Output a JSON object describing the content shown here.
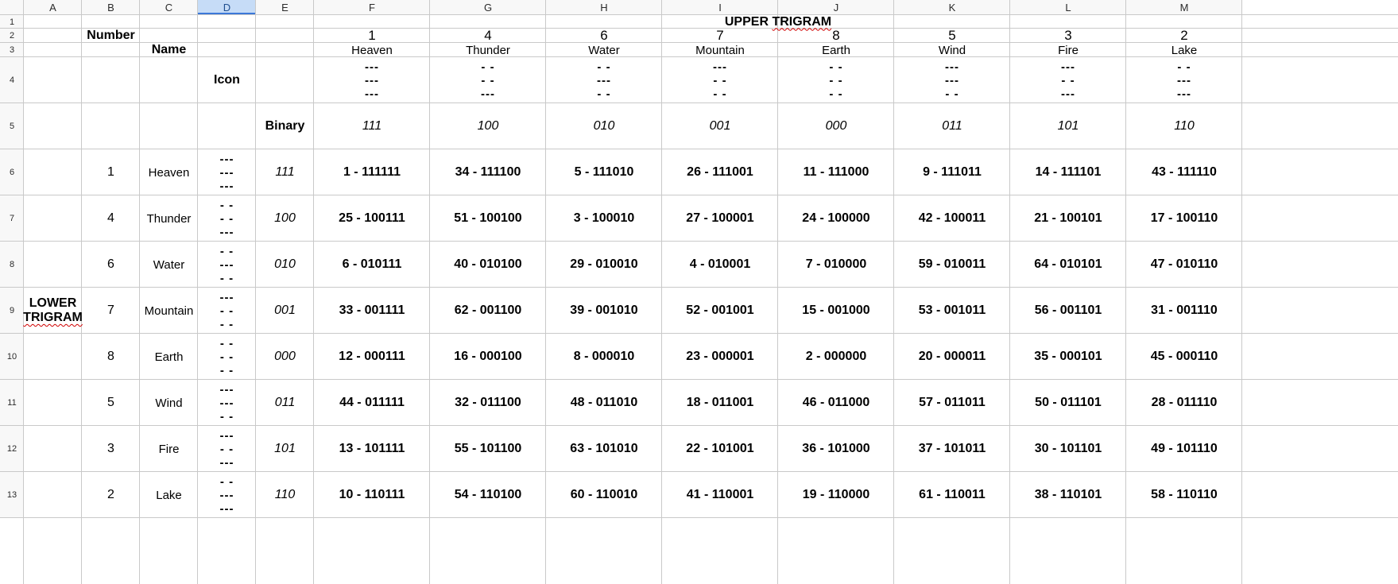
{
  "columns": [
    "A",
    "B",
    "C",
    "D",
    "E",
    "F",
    "G",
    "H",
    "I",
    "J",
    "K",
    "L",
    "M"
  ],
  "selected_column": "D",
  "rows": [
    "1",
    "2",
    "3",
    "4",
    "5",
    "6",
    "7",
    "8",
    "9",
    "10",
    "11",
    "12",
    "13"
  ],
  "title": "UPPER TRIGRAM",
  "side_label": [
    "LOWER",
    "TRIGRAM"
  ],
  "labels": {
    "number": "Number",
    "name": "Name",
    "icon": "Icon",
    "binary": "Binary"
  },
  "upper": {
    "numbers": [
      "1",
      "4",
      "6",
      "7",
      "8",
      "5",
      "3",
      "2"
    ],
    "names": [
      "Heaven",
      "Thunder",
      "Water",
      "Mountain",
      "Earth",
      "Wind",
      "Fire",
      "Lake"
    ],
    "icons": [
      [
        "---",
        "---",
        "---"
      ],
      [
        "- -",
        "- -",
        "---"
      ],
      [
        "- -",
        "---",
        "- -"
      ],
      [
        "---",
        "- -",
        "- -"
      ],
      [
        "- -",
        "- -",
        "- -"
      ],
      [
        "---",
        "---",
        "- -"
      ],
      [
        "---",
        "- -",
        "---"
      ],
      [
        "- -",
        "---",
        "---"
      ]
    ],
    "binary": [
      "111",
      "100",
      "010",
      "001",
      "000",
      "011",
      "101",
      "110"
    ]
  },
  "lower": [
    {
      "number": "1",
      "name": "Heaven",
      "icon": [
        "---",
        "---",
        "---"
      ],
      "binary": "111",
      "cells": [
        "1 - 111111",
        "34 - 111100",
        "5 - 111010",
        "26 - 111001",
        "11 - 111000",
        "9 - 111011",
        "14 - 111101",
        "43 - 111110"
      ]
    },
    {
      "number": "4",
      "name": "Thunder",
      "icon": [
        "- -",
        "- -",
        "---"
      ],
      "binary": "100",
      "cells": [
        "25 - 100111",
        "51 - 100100",
        "3 - 100010",
        "27 - 100001",
        "24 - 100000",
        "42 - 100011",
        "21 - 100101",
        "17 - 100110"
      ]
    },
    {
      "number": "6",
      "name": "Water",
      "icon": [
        "- -",
        "---",
        "- -"
      ],
      "binary": "010",
      "cells": [
        "6 - 010111",
        "40 - 010100",
        "29 - 010010",
        "4 - 010001",
        "7 - 010000",
        "59 - 010011",
        "64 - 010101",
        "47 - 010110"
      ]
    },
    {
      "number": "7",
      "name": "Mountain",
      "icon": [
        "---",
        "- -",
        "- -"
      ],
      "binary": "001",
      "cells": [
        "33 - 001111",
        "62 - 001100",
        "39 - 001010",
        "52 - 001001",
        "15 - 001000",
        "53 - 001011",
        "56 - 001101",
        "31 - 001110"
      ]
    },
    {
      "number": "8",
      "name": "Earth",
      "icon": [
        "- -",
        "- -",
        "- -"
      ],
      "binary": "000",
      "cells": [
        "12 - 000111",
        "16 - 000100",
        "8 - 000010",
        "23 - 000001",
        "2 - 000000",
        "20 - 000011",
        "35 - 000101",
        "45 - 000110"
      ]
    },
    {
      "number": "5",
      "name": "Wind",
      "icon": [
        "---",
        "---",
        "- -"
      ],
      "binary": "011",
      "cells": [
        "44 - 011111",
        "32 - 011100",
        "48 - 011010",
        "18 - 011001",
        "46 - 011000",
        "57 - 011011",
        "50 - 011101",
        "28 - 011110"
      ]
    },
    {
      "number": "3",
      "name": "Fire",
      "icon": [
        "---",
        "- -",
        "---"
      ],
      "binary": "101",
      "cells": [
        "13 - 101111",
        "55 - 101100",
        "63 - 101010",
        "22 - 101001",
        "36 - 101000",
        "37 - 101011",
        "30 - 101101",
        "49 - 101110"
      ]
    },
    {
      "number": "2",
      "name": "Lake",
      "icon": [
        "- -",
        "---",
        "---"
      ],
      "binary": "110",
      "cells": [
        "10 - 110111",
        "54 - 110100",
        "60 - 110010",
        "41 - 110001",
        "19 - 110000",
        "61 - 110011",
        "38 - 110101",
        "58 - 110110"
      ]
    }
  ]
}
